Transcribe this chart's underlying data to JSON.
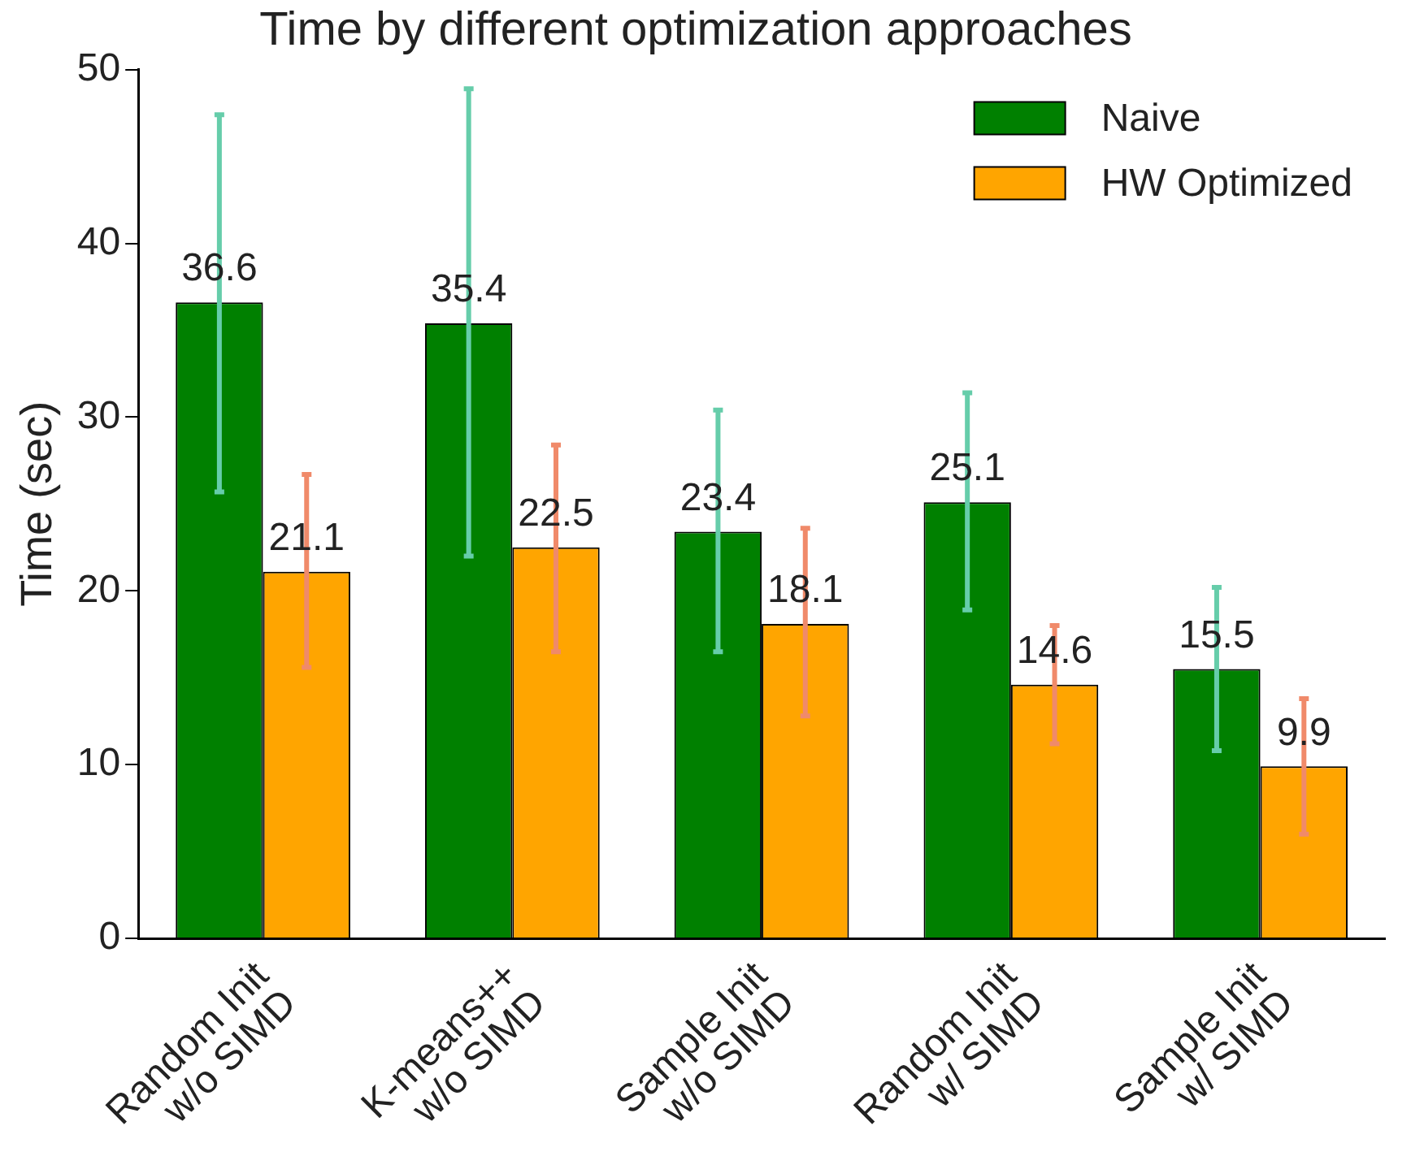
{
  "chart_data": {
    "type": "bar",
    "title": "Time by different optimization approaches",
    "ylabel": "Time (sec)",
    "categories": [
      "Random Init\nw/o SIMD",
      "K-means++\nw/o SIMD",
      "Sample Init\nw/o SIMD",
      "Random Init\nw/ SIMD",
      "Sample Init\nw/ SIMD"
    ],
    "series": [
      {
        "name": "Naive",
        "color": "#008000",
        "values": [
          36.6,
          35.4,
          23.4,
          25.1,
          15.5
        ],
        "errors": [
          [
            25.7,
            47.4
          ],
          [
            22.0,
            48.9
          ],
          [
            16.5,
            30.4
          ],
          [
            18.9,
            31.4
          ],
          [
            10.8,
            20.2
          ]
        ]
      },
      {
        "name": "HW Optimized",
        "color": "#ffa500",
        "values": [
          21.1,
          22.5,
          18.1,
          14.6,
          9.9
        ],
        "errors": [
          [
            15.6,
            26.7
          ],
          [
            16.5,
            28.4
          ],
          [
            12.8,
            23.6
          ],
          [
            11.2,
            18.0
          ],
          [
            6.0,
            13.8
          ]
        ]
      }
    ],
    "ylim": [
      0,
      50
    ],
    "yticks": [
      0,
      10,
      20,
      30,
      40,
      50
    ],
    "grid": false,
    "legend": "top right",
    "data_labels": true
  }
}
